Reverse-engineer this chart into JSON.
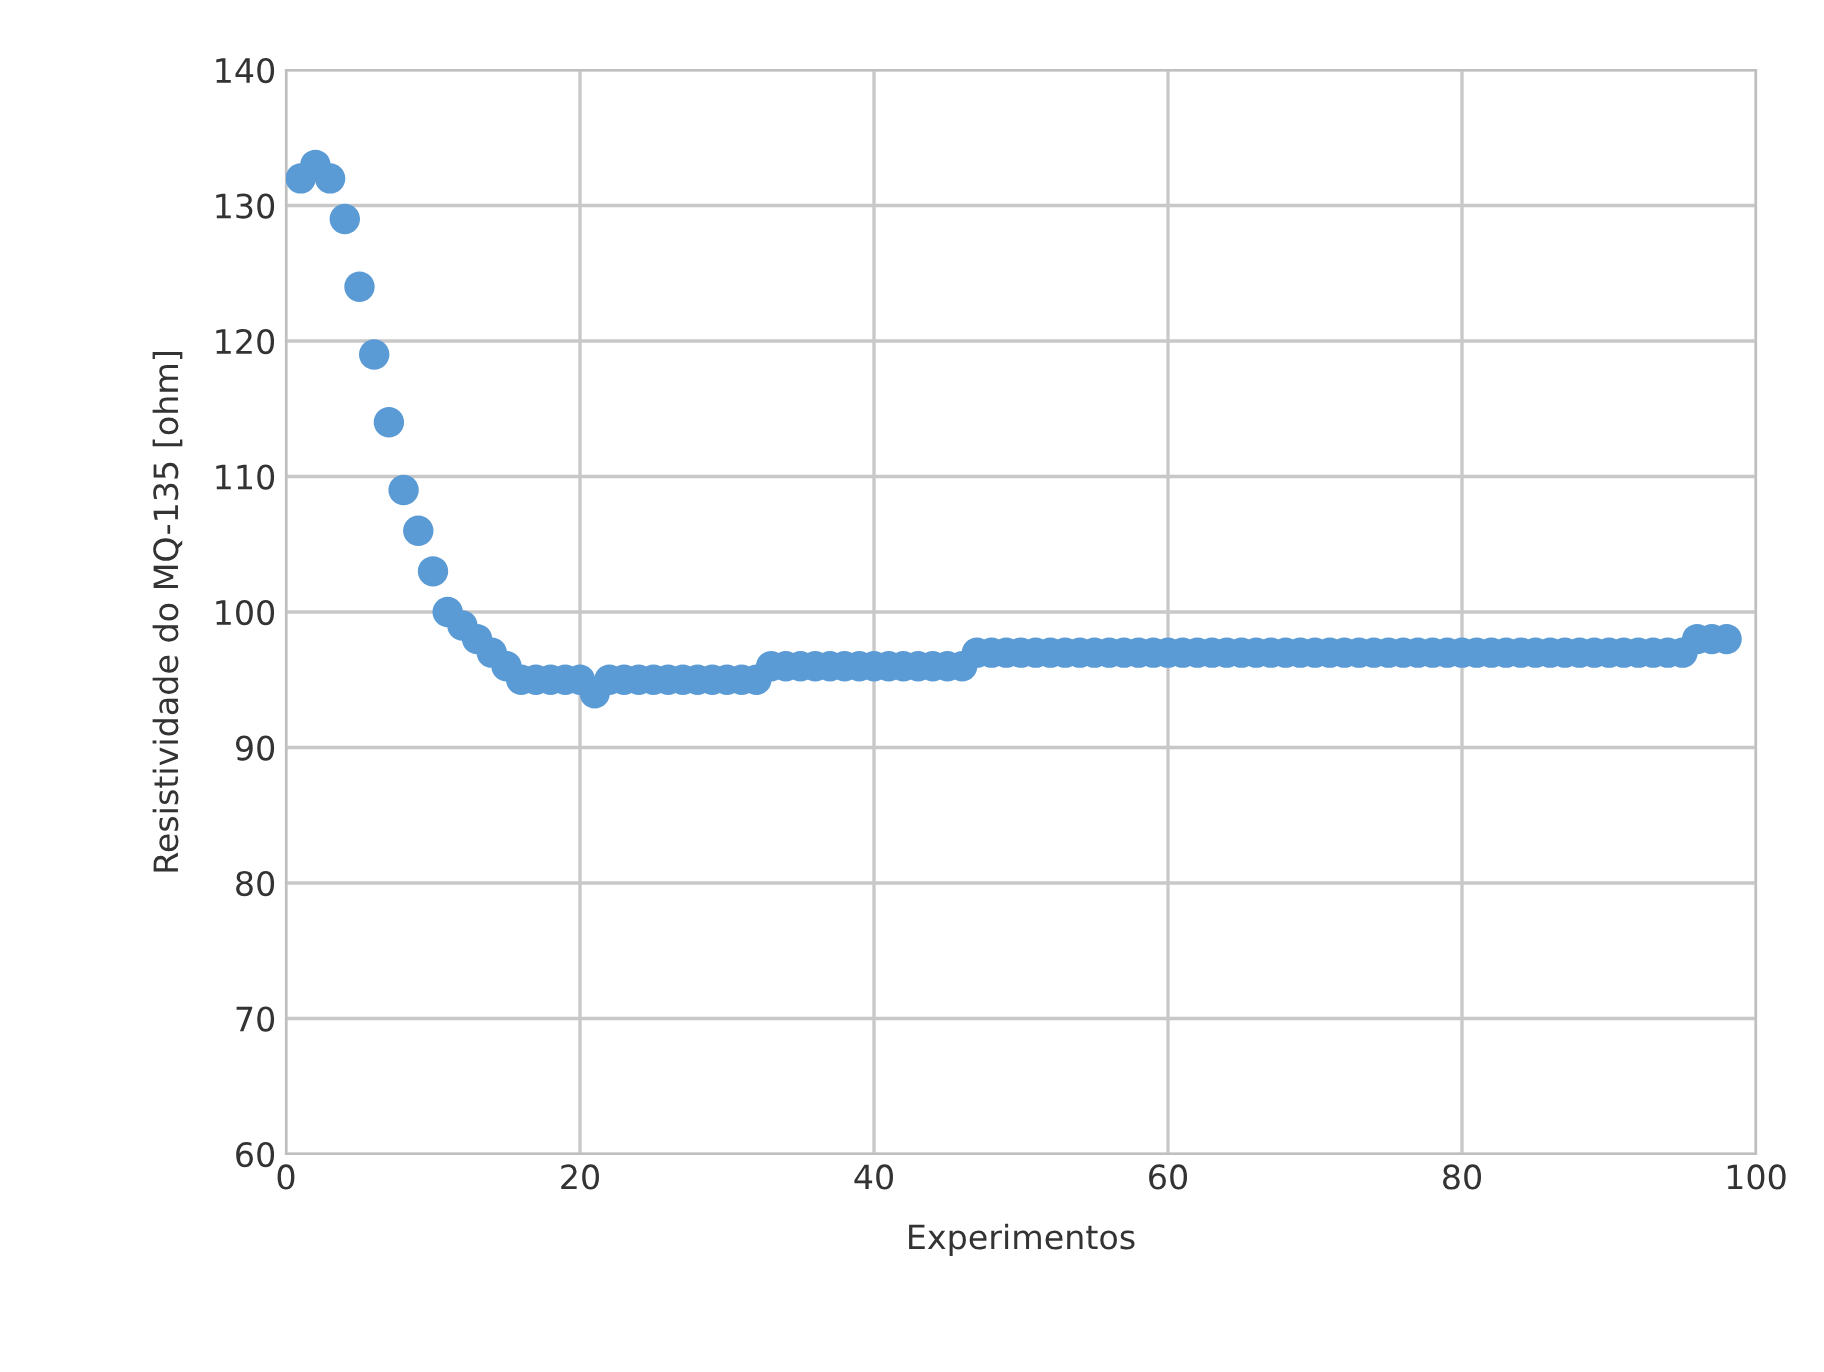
{
  "chart_data": {
    "type": "scatter",
    "xlabel": "Experimentos",
    "ylabel": "Resistividade do MQ-135 [ohm]",
    "x": [
      1,
      2,
      3,
      4,
      5,
      6,
      7,
      8,
      9,
      10,
      11,
      12,
      13,
      14,
      15,
      16,
      17,
      18,
      19,
      20,
      21,
      22,
      23,
      24,
      25,
      26,
      27,
      28,
      29,
      30,
      31,
      32,
      33,
      34,
      35,
      36,
      37,
      38,
      39,
      40,
      41,
      42,
      43,
      44,
      45,
      46,
      47,
      48,
      49,
      50,
      51,
      52,
      53,
      54,
      55,
      56,
      57,
      58,
      59,
      60,
      61,
      62,
      63,
      64,
      65,
      66,
      67,
      68,
      69,
      70,
      71,
      72,
      73,
      74,
      75,
      76,
      77,
      78,
      79,
      80,
      81,
      82,
      83,
      84,
      85,
      86,
      87,
      88,
      89,
      90,
      91,
      92,
      93,
      94,
      95,
      96,
      97,
      98
    ],
    "values": [
      132,
      133,
      132,
      129,
      124,
      119,
      114,
      109,
      106,
      103,
      100,
      99,
      98,
      97,
      96,
      95,
      95,
      95,
      95,
      95,
      94,
      95,
      95,
      95,
      95,
      95,
      95,
      95,
      95,
      95,
      95,
      95,
      96,
      96,
      96,
      96,
      96,
      96,
      96,
      96,
      96,
      96,
      96,
      96,
      96,
      96,
      97,
      97,
      97,
      97,
      97,
      97,
      97,
      97,
      97,
      97,
      97,
      97,
      97,
      97,
      97,
      97,
      97,
      97,
      97,
      97,
      97,
      97,
      97,
      97,
      97,
      97,
      97,
      97,
      97,
      97,
      97,
      97,
      97,
      97,
      97,
      97,
      97,
      97,
      97,
      97,
      97,
      97,
      97,
      97,
      97,
      97,
      97,
      97,
      97,
      98,
      98,
      98
    ],
    "color": "#5b9bd5",
    "marker": "circle",
    "xlim": [
      0,
      100
    ],
    "xticks": [
      0,
      20,
      40,
      60,
      80,
      100
    ],
    "ylim": [
      60,
      140
    ],
    "yticks": [
      60,
      70,
      80,
      90,
      100,
      110,
      120,
      130,
      140
    ],
    "grid": true,
    "legend": false
  }
}
